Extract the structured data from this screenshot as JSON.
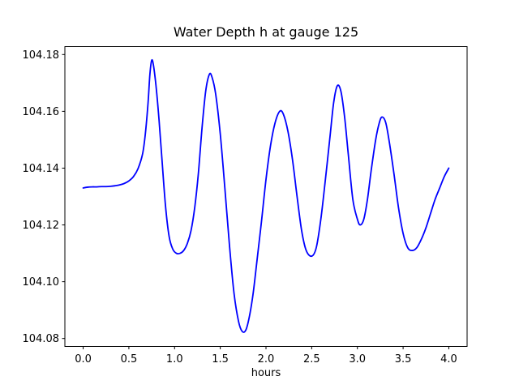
{
  "figure": {
    "background": "#ffffff",
    "frame_color": "#000000"
  },
  "chart_data": {
    "type": "line",
    "title": "Water Depth h at gauge 125",
    "xlabel": "hours",
    "ylabel": "",
    "grid": false,
    "line_color": "#0000ff",
    "xlim": [
      -0.2,
      4.2
    ],
    "ylim": [
      104.0772,
      104.1828
    ],
    "xtick_values": [
      0.0,
      0.5,
      1.0,
      1.5,
      2.0,
      2.5,
      3.0,
      3.5,
      4.0
    ],
    "xtick_labels": [
      "0.0",
      "0.5",
      "1.0",
      "1.5",
      "2.0",
      "2.5",
      "3.0",
      "3.5",
      "4.0"
    ],
    "ytick_values": [
      104.08,
      104.1,
      104.12,
      104.14,
      104.16,
      104.18
    ],
    "ytick_labels": [
      "104.08",
      "104.10",
      "104.12",
      "104.14",
      "104.16",
      "104.18"
    ],
    "series": [
      {
        "name": "water-depth-h",
        "color": "#0000ff",
        "x": [
          0.0,
          0.05,
          0.1,
          0.15,
          0.2,
          0.25,
          0.3,
          0.35,
          0.4,
          0.45,
          0.5,
          0.55,
          0.6,
          0.65,
          0.68,
          0.71,
          0.73,
          0.75,
          0.77,
          0.8,
          0.83,
          0.86,
          0.9,
          0.94,
          0.98,
          1.02,
          1.06,
          1.1,
          1.14,
          1.18,
          1.22,
          1.26,
          1.3,
          1.34,
          1.38,
          1.41,
          1.45,
          1.5,
          1.55,
          1.6,
          1.65,
          1.7,
          1.74,
          1.78,
          1.82,
          1.86,
          1.9,
          1.95,
          2.0,
          2.05,
          2.1,
          2.15,
          2.19,
          2.24,
          2.29,
          2.34,
          2.39,
          2.44,
          2.5,
          2.55,
          2.6,
          2.65,
          2.7,
          2.74,
          2.78,
          2.82,
          2.86,
          2.9,
          2.95,
          3.0,
          3.03,
          3.07,
          3.11,
          3.15,
          3.2,
          3.24,
          3.27,
          3.31,
          3.35,
          3.4,
          3.45,
          3.5,
          3.55,
          3.6,
          3.65,
          3.7,
          3.75,
          3.8,
          3.85,
          3.9,
          3.95,
          4.0
        ],
        "y": [
          104.133,
          104.1333,
          104.1334,
          104.1334,
          104.1335,
          104.1335,
          104.1336,
          104.1338,
          104.1341,
          104.1346,
          104.1355,
          104.137,
          104.1398,
          104.145,
          104.152,
          104.163,
          104.173,
          104.178,
          104.176,
          104.168,
          104.157,
          104.144,
          104.127,
          104.116,
          104.1115,
          104.11,
          104.11,
          104.111,
          104.1135,
          104.118,
          104.126,
          104.138,
          104.154,
          104.167,
          104.173,
          104.172,
          104.166,
          104.152,
          104.133,
          104.113,
          104.096,
          104.086,
          104.0825,
          104.083,
          104.088,
          104.096,
          104.107,
          104.121,
          104.136,
          104.148,
          104.156,
          104.16,
          104.159,
          104.153,
          104.143,
          104.13,
          104.118,
          104.111,
          104.109,
          104.112,
          104.122,
          104.136,
          104.151,
          104.163,
          104.169,
          104.167,
          104.158,
          104.145,
          104.129,
          104.122,
          104.12,
          104.122,
          104.129,
          104.139,
          104.15,
          104.156,
          104.158,
          104.156,
          104.149,
          104.138,
          104.126,
          104.117,
          104.112,
          104.111,
          104.112,
          104.115,
          104.119,
          104.124,
          104.129,
          104.133,
          104.137,
          104.14
        ]
      }
    ]
  }
}
